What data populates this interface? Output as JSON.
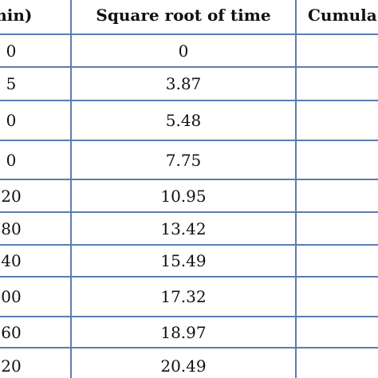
{
  "table": {
    "headers": [
      "min)",
      "Square root of time",
      "Cumula"
    ],
    "rows": [
      [
        "0",
        "0",
        ""
      ],
      [
        "5",
        "3.87",
        ""
      ],
      [
        "0",
        "5.48",
        ""
      ],
      [
        "0",
        "7.75",
        ""
      ],
      [
        "20",
        "10.95",
        ""
      ],
      [
        "80",
        "13.42",
        ""
      ],
      [
        "40",
        "15.49",
        ""
      ],
      [
        "00",
        "17.32",
        ""
      ],
      [
        "60",
        "18.97",
        ""
      ],
      [
        "20",
        "20.49",
        ""
      ]
    ]
  },
  "colors": {
    "grid_line": "#5b7db0",
    "text": "#111111",
    "background": "#ffffff"
  }
}
